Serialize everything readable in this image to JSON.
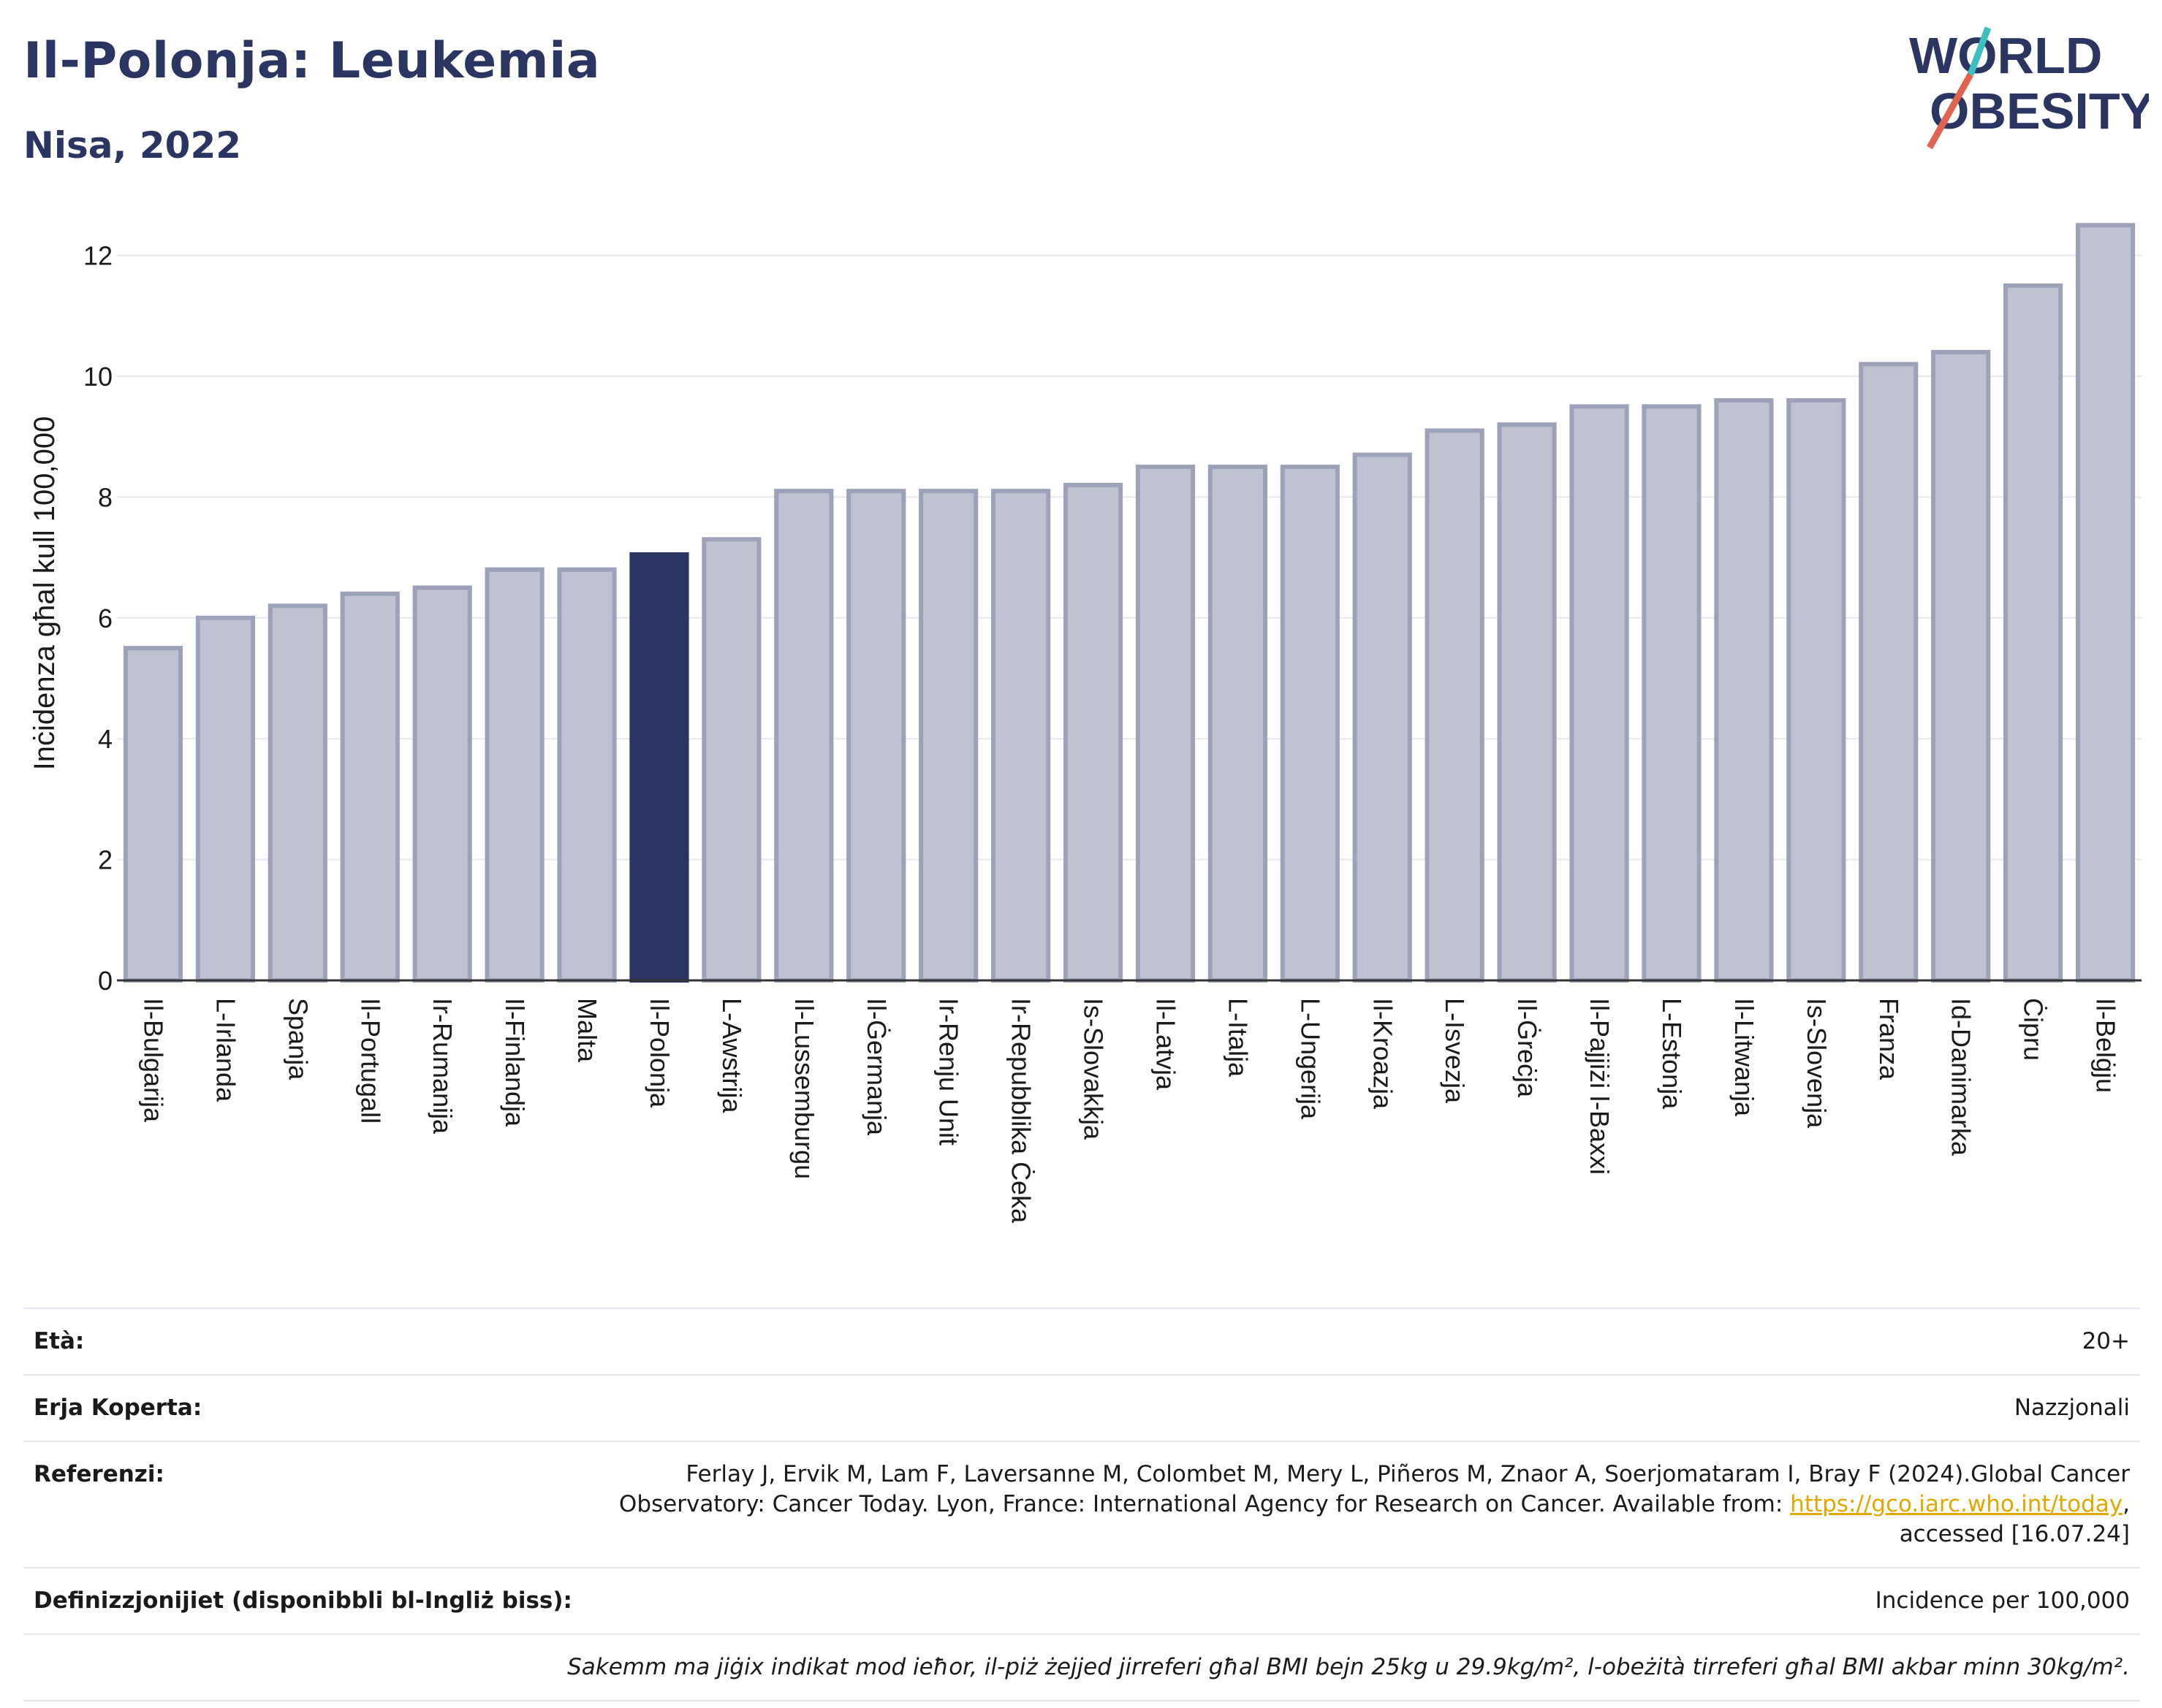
{
  "header": {
    "title": "Il-Polonja: Leukemia",
    "subtitle": "Nisa, 2022"
  },
  "logo": {
    "line1": "WORLD",
    "line2": "OBESITY",
    "colors": {
      "text": "#2b3561",
      "slash_red": "#e06450",
      "slash_teal": "#3bbfbf"
    }
  },
  "chart_data": {
    "type": "bar",
    "ylabel": "Inċidenza għal kull 100,000",
    "xlabel": "",
    "ylim": [
      0,
      12.6
    ],
    "yticks": [
      0,
      2,
      4,
      6,
      8,
      10,
      12
    ],
    "grid": true,
    "highlight": "Il-Polonja",
    "colors": {
      "bar": "#bfc2d0",
      "bar_edge": "#9da2bb",
      "highlight": "#2b3561",
      "grid": "#e8e8ee",
      "axis": "#333333"
    },
    "categories": [
      "Il-Bulgarija",
      "L-Irlanda",
      "Spanja",
      "Il-Portugall",
      "Ir-Rumanija",
      "Il-Finlandja",
      "Malta",
      "Il-Polonja",
      "L-Awstrija",
      "Il-Lussemburgu",
      "Il-Ġermanja",
      "Ir-Renju Unit",
      "Ir-Repubblika Ċeka",
      "Is-Slovakkja",
      "Il-Latvja",
      "L-Italja",
      "L-Ungerija",
      "Il-Kroazja",
      "L-Isvezja",
      "Il-Ġreċja",
      "Il-Pajjiżi l-Baxxi",
      "L-Estonja",
      "Il-Litwanja",
      "Is-Slovenja",
      "Franza",
      "Id-Danimarka",
      "Ċipru",
      "Il-Belġju"
    ],
    "values": [
      5.5,
      6.0,
      6.2,
      6.4,
      6.5,
      6.8,
      6.8,
      7.05,
      7.3,
      8.1,
      8.1,
      8.1,
      8.1,
      8.2,
      8.5,
      8.5,
      8.5,
      8.7,
      9.1,
      9.2,
      9.5,
      9.5,
      9.6,
      9.6,
      10.2,
      10.4,
      11.5,
      12.5
    ]
  },
  "info": {
    "age_label": "Età:",
    "age_value": "20+",
    "area_label": "Erja Koperta:",
    "area_value": "Nazzjonali",
    "ref_label": "Referenzi:",
    "ref_text_1": "Ferlay J, Ervik M, Lam F, Laversanne M, Colombet M, Mery L, Piñeros M, Znaor A, Soerjomataram I, Bray F (2024).Global Cancer Observatory: Cancer Today. Lyon, France: International Agency for Research on Cancer. Available from: ",
    "ref_link": "https://gco.iarc.who.int/today",
    "ref_text_2": ", accessed [16.07.24]",
    "def_label": "Definizzjonijiet (disponibbli bl-Ingliż biss):",
    "def_value": "Incidence per 100,000",
    "note": "Sakemm ma jiġix indikat mod ieħor, il-piż żejjed jirreferi għal BMI bejn 25kg u 29.9kg/m², l-obeżità tirreferi għal BMI akbar minn 30kg/m²."
  }
}
